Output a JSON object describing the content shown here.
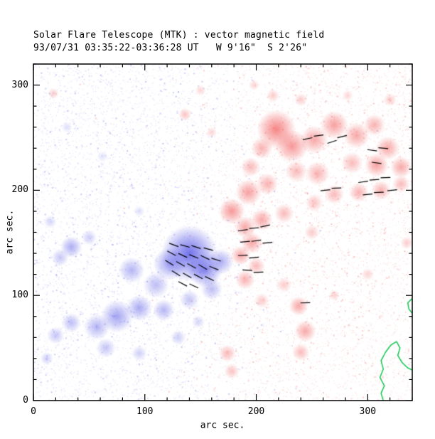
{
  "chart_data": {
    "type": "heatmap",
    "title": "Solar Flare Telescope (MTK) : vector magnetic field",
    "subtitle": "93/07/31 03:35:22-03:36:28 UT   W 9'16\"  S 2'26\"",
    "xlabel": "arc sec.",
    "ylabel": "arc sec.",
    "xlim": [
      0,
      340
    ],
    "ylim": [
      0,
      320
    ],
    "xticks": [
      0,
      100,
      200,
      300
    ],
    "yticks": [
      0,
      100,
      200,
      300
    ],
    "minor_tick_step": 20,
    "legend": "none",
    "grid": false,
    "colors": {
      "negative_polarity": "#5a5ae8",
      "positive_polarity": "#f25252",
      "contour": "#00c345",
      "vectors": "#000000",
      "frame": "#000000",
      "background": "#ffffff"
    },
    "noise": {
      "count": 11000,
      "seed": 7
    },
    "blobs": [
      [
        140,
        140,
        26,
        0.85,
        "n"
      ],
      [
        154,
        124,
        16,
        0.7,
        "n"
      ],
      [
        122,
        130,
        15,
        0.55,
        "n"
      ],
      [
        168,
        132,
        12,
        0.5,
        "n"
      ],
      [
        110,
        110,
        12,
        0.4,
        "n"
      ],
      [
        88,
        124,
        12,
        0.45,
        "n"
      ],
      [
        34,
        146,
        10,
        0.5,
        "n"
      ],
      [
        24,
        136,
        8,
        0.35,
        "n"
      ],
      [
        75,
        80,
        15,
        0.55,
        "n"
      ],
      [
        95,
        88,
        12,
        0.5,
        "n"
      ],
      [
        57,
        70,
        12,
        0.45,
        "n"
      ],
      [
        34,
        74,
        9,
        0.4,
        "n"
      ],
      [
        20,
        62,
        8,
        0.35,
        "n"
      ],
      [
        117,
        86,
        10,
        0.45,
        "n"
      ],
      [
        140,
        96,
        9,
        0.35,
        "n"
      ],
      [
        160,
        106,
        10,
        0.4,
        "n"
      ],
      [
        130,
        60,
        7,
        0.3,
        "n"
      ],
      [
        65,
        50,
        9,
        0.35,
        "n"
      ],
      [
        95,
        45,
        7,
        0.3,
        "n"
      ],
      [
        50,
        155,
        7,
        0.3,
        "n"
      ],
      [
        15,
        170,
        6,
        0.25,
        "n"
      ],
      [
        30,
        260,
        5,
        0.2,
        "n"
      ],
      [
        62,
        232,
        5,
        0.18,
        "n"
      ],
      [
        95,
        180,
        5,
        0.2,
        "n"
      ],
      [
        12,
        40,
        6,
        0.3,
        "n"
      ],
      [
        148,
        75,
        6,
        0.25,
        "n"
      ],
      [
        218,
        258,
        18,
        0.7,
        "p"
      ],
      [
        232,
        242,
        15,
        0.6,
        "p"
      ],
      [
        252,
        248,
        13,
        0.5,
        "p"
      ],
      [
        270,
        262,
        13,
        0.55,
        "p"
      ],
      [
        290,
        252,
        12,
        0.5,
        "p"
      ],
      [
        306,
        262,
        10,
        0.45,
        "p"
      ],
      [
        318,
        240,
        11,
        0.5,
        "p"
      ],
      [
        308,
        224,
        11,
        0.55,
        "p"
      ],
      [
        330,
        222,
        10,
        0.5,
        "p"
      ],
      [
        286,
        226,
        10,
        0.4,
        "p"
      ],
      [
        255,
        216,
        11,
        0.45,
        "p"
      ],
      [
        236,
        218,
        10,
        0.4,
        "p"
      ],
      [
        205,
        240,
        10,
        0.45,
        "p"
      ],
      [
        195,
        222,
        9,
        0.4,
        "p"
      ],
      [
        210,
        206,
        10,
        0.45,
        "p"
      ],
      [
        193,
        198,
        12,
        0.55,
        "p"
      ],
      [
        178,
        180,
        12,
        0.6,
        "p"
      ],
      [
        190,
        165,
        10,
        0.5,
        "p"
      ],
      [
        205,
        172,
        10,
        0.5,
        "p"
      ],
      [
        225,
        178,
        9,
        0.4,
        "p"
      ],
      [
        196,
        150,
        10,
        0.5,
        "p"
      ],
      [
        186,
        138,
        9,
        0.5,
        "p"
      ],
      [
        200,
        128,
        8,
        0.4,
        "p"
      ],
      [
        190,
        115,
        9,
        0.45,
        "p"
      ],
      [
        252,
        188,
        8,
        0.35,
        "p"
      ],
      [
        270,
        196,
        9,
        0.4,
        "p"
      ],
      [
        292,
        198,
        9,
        0.45,
        "p"
      ],
      [
        312,
        200,
        9,
        0.45,
        "p"
      ],
      [
        330,
        206,
        8,
        0.4,
        "p"
      ],
      [
        250,
        160,
        7,
        0.3,
        "p"
      ],
      [
        238,
        90,
        9,
        0.5,
        "p"
      ],
      [
        244,
        66,
        10,
        0.5,
        "p"
      ],
      [
        240,
        46,
        8,
        0.4,
        "p"
      ],
      [
        174,
        45,
        8,
        0.4,
        "p"
      ],
      [
        178,
        28,
        7,
        0.35,
        "p"
      ],
      [
        205,
        95,
        7,
        0.3,
        "p"
      ],
      [
        225,
        110,
        7,
        0.3,
        "p"
      ],
      [
        136,
        272,
        6,
        0.35,
        "p"
      ],
      [
        160,
        255,
        5,
        0.25,
        "p"
      ],
      [
        18,
        292,
        5,
        0.3,
        "p"
      ],
      [
        150,
        295,
        5,
        0.25,
        "p"
      ],
      [
        240,
        286,
        6,
        0.3,
        "p"
      ],
      [
        282,
        290,
        5,
        0.25,
        "p"
      ],
      [
        320,
        286,
        6,
        0.3,
        "p"
      ],
      [
        335,
        150,
        6,
        0.3,
        "p"
      ],
      [
        300,
        120,
        6,
        0.25,
        "p"
      ],
      [
        270,
        100,
        5,
        0.25,
        "p"
      ],
      [
        215,
        290,
        6,
        0.3,
        "p"
      ],
      [
        198,
        300,
        5,
        0.25,
        "p"
      ]
    ],
    "vectors": {
      "length": 9,
      "segments": [
        [
          126,
          148,
          -20
        ],
        [
          136,
          147,
          -15
        ],
        [
          146,
          146,
          -18
        ],
        [
          157,
          144,
          -15
        ],
        [
          124,
          140,
          -28
        ],
        [
          134,
          138,
          -25
        ],
        [
          144,
          137,
          -22
        ],
        [
          154,
          136,
          -25
        ],
        [
          164,
          134,
          -18
        ],
        [
          122,
          131,
          -32
        ],
        [
          132,
          130,
          -30
        ],
        [
          142,
          128,
          -28
        ],
        [
          152,
          127,
          -30
        ],
        [
          162,
          126,
          -22
        ],
        [
          128,
          121,
          -32
        ],
        [
          138,
          119,
          -30
        ],
        [
          148,
          118,
          -28
        ],
        [
          158,
          116,
          -25
        ],
        [
          134,
          111,
          -28
        ],
        [
          144,
          109,
          -25
        ],
        [
          188,
          162,
          8
        ],
        [
          198,
          164,
          5
        ],
        [
          208,
          166,
          12
        ],
        [
          190,
          151,
          5
        ],
        [
          200,
          152,
          8
        ],
        [
          210,
          150,
          5
        ],
        [
          188,
          138,
          2
        ],
        [
          198,
          136,
          5
        ],
        [
          192,
          124,
          -3
        ],
        [
          202,
          122,
          2
        ],
        [
          262,
          200,
          6
        ],
        [
          272,
          202,
          2
        ],
        [
          296,
          208,
          8
        ],
        [
          306,
          210,
          4
        ],
        [
          316,
          212,
          2
        ],
        [
          300,
          196,
          5
        ],
        [
          310,
          198,
          2
        ],
        [
          322,
          200,
          6
        ],
        [
          304,
          238,
          -8
        ],
        [
          314,
          240,
          -5
        ],
        [
          308,
          226,
          -8
        ],
        [
          268,
          246,
          18
        ],
        [
          277,
          251,
          14
        ],
        [
          246,
          249,
          12
        ],
        [
          256,
          252,
          8
        ],
        [
          244,
          93,
          2
        ]
      ]
    },
    "contours": [
      [
        [
          314,
          0
        ],
        [
          312,
          7
        ],
        [
          315,
          14
        ],
        [
          311,
          22
        ],
        [
          314,
          30
        ],
        [
          312,
          38
        ],
        [
          316,
          46
        ],
        [
          321,
          53
        ],
        [
          326,
          56
        ],
        [
          329,
          50
        ],
        [
          327,
          43
        ],
        [
          331,
          36
        ],
        [
          336,
          31
        ],
        [
          340,
          29
        ]
      ],
      [
        [
          340,
          97
        ],
        [
          336,
          93
        ],
        [
          337,
          87
        ],
        [
          340,
          83
        ]
      ]
    ]
  }
}
